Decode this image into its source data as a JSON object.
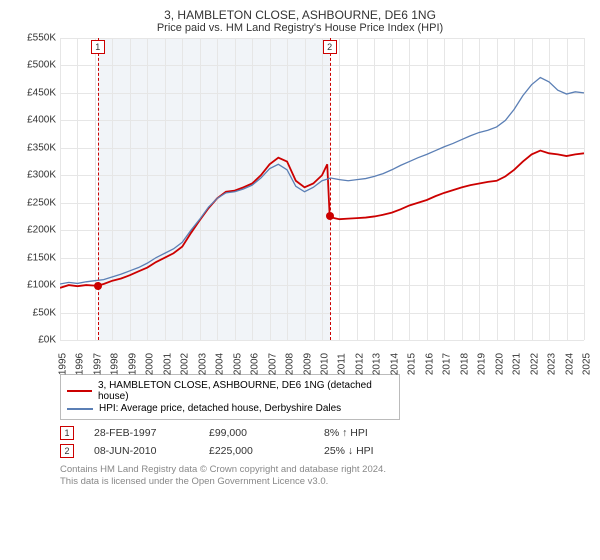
{
  "chart": {
    "title": "3, HAMBLETON CLOSE, ASHBOURNE, DE6 1NG",
    "subtitle": "Price paid vs. HM Land Registry's House Price Index (HPI)",
    "type": "line",
    "ylabel_prefix": "£",
    "ylabel_suffix": "K",
    "ylim": [
      0,
      550
    ],
    "ytick_step": 50,
    "x_years": [
      1995,
      1996,
      1997,
      1998,
      1999,
      2000,
      2001,
      2002,
      2003,
      2004,
      2005,
      2006,
      2007,
      2008,
      2009,
      2010,
      2011,
      2012,
      2013,
      2014,
      2015,
      2016,
      2017,
      2018,
      2019,
      2020,
      2021,
      2022,
      2023,
      2024,
      2025
    ],
    "grid_color": "#e6e6e6",
    "background_color": "#ffffff",
    "shade_color": "#e8ecf4",
    "shade_range": [
      1997.16,
      2010.44
    ],
    "dash_color": "#cc0000",
    "series": [
      {
        "name": "3, HAMBLETON CLOSE, ASHBOURNE, DE6 1NG (detached house)",
        "color": "#cc0000",
        "width": 1.8,
        "points": [
          [
            1995.0,
            95
          ],
          [
            1995.5,
            100
          ],
          [
            1996.0,
            98
          ],
          [
            1996.5,
            100
          ],
          [
            1997.0,
            99
          ],
          [
            1997.16,
            99
          ],
          [
            1997.5,
            102
          ],
          [
            1998.0,
            108
          ],
          [
            1998.5,
            112
          ],
          [
            1999.0,
            118
          ],
          [
            1999.5,
            125
          ],
          [
            2000.0,
            132
          ],
          [
            2000.5,
            142
          ],
          [
            2001.0,
            150
          ],
          [
            2001.5,
            158
          ],
          [
            2002.0,
            170
          ],
          [
            2002.5,
            195
          ],
          [
            2003.0,
            218
          ],
          [
            2003.5,
            240
          ],
          [
            2004.0,
            258
          ],
          [
            2004.5,
            270
          ],
          [
            2005.0,
            272
          ],
          [
            2005.5,
            278
          ],
          [
            2006.0,
            285
          ],
          [
            2006.5,
            300
          ],
          [
            2007.0,
            320
          ],
          [
            2007.5,
            332
          ],
          [
            2008.0,
            325
          ],
          [
            2008.5,
            290
          ],
          [
            2009.0,
            278
          ],
          [
            2009.5,
            285
          ],
          [
            2010.0,
            300
          ],
          [
            2010.3,
            320
          ],
          [
            2010.44,
            225
          ],
          [
            2010.7,
            222
          ],
          [
            2011.0,
            220
          ],
          [
            2011.5,
            221
          ],
          [
            2012.0,
            222
          ],
          [
            2012.5,
            223
          ],
          [
            2013.0,
            225
          ],
          [
            2013.5,
            228
          ],
          [
            2014.0,
            232
          ],
          [
            2014.5,
            238
          ],
          [
            2015.0,
            245
          ],
          [
            2015.5,
            250
          ],
          [
            2016.0,
            255
          ],
          [
            2016.5,
            262
          ],
          [
            2017.0,
            268
          ],
          [
            2017.5,
            273
          ],
          [
            2018.0,
            278
          ],
          [
            2018.5,
            282
          ],
          [
            2019.0,
            285
          ],
          [
            2019.5,
            288
          ],
          [
            2020.0,
            290
          ],
          [
            2020.5,
            298
          ],
          [
            2021.0,
            310
          ],
          [
            2021.5,
            325
          ],
          [
            2022.0,
            338
          ],
          [
            2022.5,
            345
          ],
          [
            2023.0,
            340
          ],
          [
            2023.5,
            338
          ],
          [
            2024.0,
            335
          ],
          [
            2024.5,
            338
          ],
          [
            2025.0,
            340
          ]
        ]
      },
      {
        "name": "HPI: Average price, detached house, Derbyshire Dales",
        "color": "#5b7fb5",
        "width": 1.3,
        "points": [
          [
            1995.0,
            102
          ],
          [
            1995.5,
            105
          ],
          [
            1996.0,
            103
          ],
          [
            1996.5,
            106
          ],
          [
            1997.0,
            108
          ],
          [
            1997.5,
            110
          ],
          [
            1998.0,
            115
          ],
          [
            1998.5,
            120
          ],
          [
            1999.0,
            126
          ],
          [
            1999.5,
            132
          ],
          [
            2000.0,
            140
          ],
          [
            2000.5,
            150
          ],
          [
            2001.0,
            158
          ],
          [
            2001.5,
            166
          ],
          [
            2002.0,
            178
          ],
          [
            2002.5,
            200
          ],
          [
            2003.0,
            220
          ],
          [
            2003.5,
            242
          ],
          [
            2004.0,
            258
          ],
          [
            2004.5,
            268
          ],
          [
            2005.0,
            270
          ],
          [
            2005.5,
            275
          ],
          [
            2006.0,
            282
          ],
          [
            2006.5,
            295
          ],
          [
            2007.0,
            312
          ],
          [
            2007.5,
            320
          ],
          [
            2008.0,
            310
          ],
          [
            2008.5,
            280
          ],
          [
            2009.0,
            270
          ],
          [
            2009.5,
            278
          ],
          [
            2010.0,
            290
          ],
          [
            2010.5,
            295
          ],
          [
            2011.0,
            292
          ],
          [
            2011.5,
            290
          ],
          [
            2012.0,
            292
          ],
          [
            2012.5,
            294
          ],
          [
            2013.0,
            298
          ],
          [
            2013.5,
            303
          ],
          [
            2014.0,
            310
          ],
          [
            2014.5,
            318
          ],
          [
            2015.0,
            325
          ],
          [
            2015.5,
            332
          ],
          [
            2016.0,
            338
          ],
          [
            2016.5,
            345
          ],
          [
            2017.0,
            352
          ],
          [
            2017.5,
            358
          ],
          [
            2018.0,
            365
          ],
          [
            2018.5,
            372
          ],
          [
            2019.0,
            378
          ],
          [
            2019.5,
            382
          ],
          [
            2020.0,
            388
          ],
          [
            2020.5,
            400
          ],
          [
            2021.0,
            420
          ],
          [
            2021.5,
            445
          ],
          [
            2022.0,
            465
          ],
          [
            2022.5,
            478
          ],
          [
            2023.0,
            470
          ],
          [
            2023.5,
            455
          ],
          [
            2024.0,
            448
          ],
          [
            2024.5,
            452
          ],
          [
            2025.0,
            450
          ]
        ]
      }
    ],
    "markers": [
      {
        "n": "1",
        "x": 1997.16,
        "y": 99,
        "dot_color": "#cc0000"
      },
      {
        "n": "2",
        "x": 2010.44,
        "y": 225,
        "dot_color": "#cc0000"
      }
    ]
  },
  "legend": {
    "items": [
      {
        "color": "#cc0000",
        "label": "3, HAMBLETON CLOSE, ASHBOURNE, DE6 1NG (detached house)"
      },
      {
        "color": "#5b7fb5",
        "label": "HPI: Average price, detached house, Derbyshire Dales"
      }
    ]
  },
  "notes": [
    {
      "n": "1",
      "date": "28-FEB-1997",
      "price": "£99,000",
      "delta": "8% ↑ HPI"
    },
    {
      "n": "2",
      "date": "08-JUN-2010",
      "price": "£225,000",
      "delta": "25% ↓ HPI"
    }
  ],
  "footer": {
    "line1": "Contains HM Land Registry data © Crown copyright and database right 2024.",
    "line2": "This data is licensed under the Open Government Licence v3.0."
  }
}
